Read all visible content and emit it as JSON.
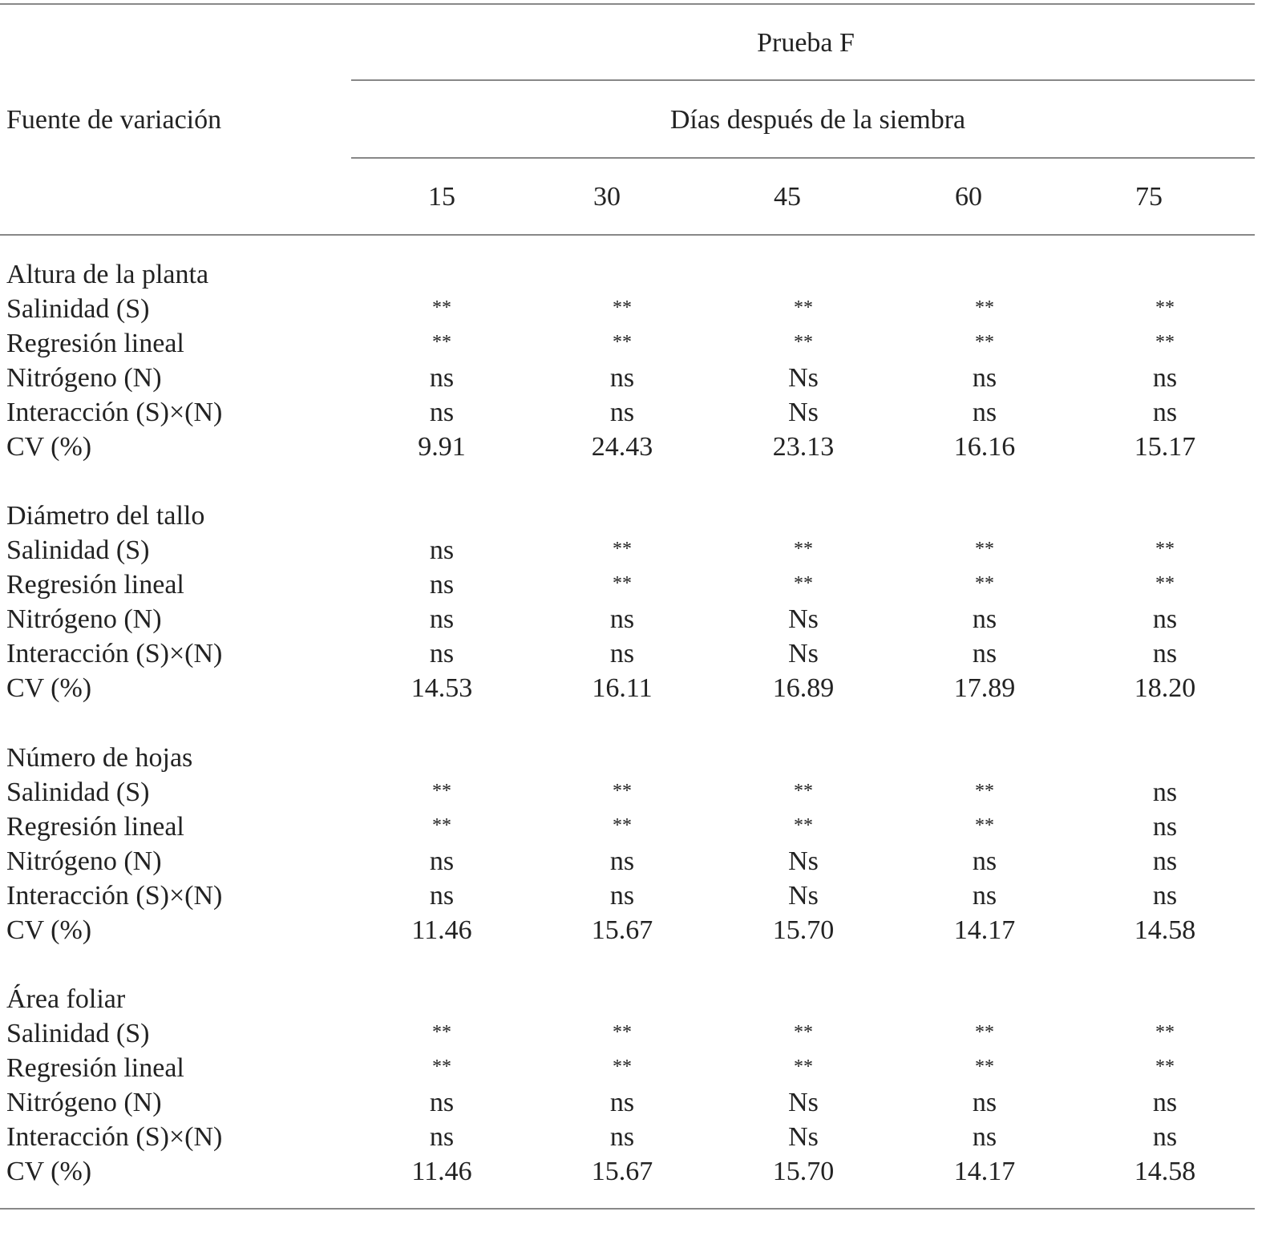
{
  "header": {
    "stub": "Fuente de variación",
    "spanner": "Prueba F",
    "subspanner": "Días después de la siembra",
    "columns": [
      "15",
      "30",
      "45",
      "60",
      "75"
    ]
  },
  "groups": [
    {
      "title": "Altura de la planta",
      "rows": [
        {
          "label": "Salinidad (S)",
          "values": [
            "**",
            "**",
            "**",
            "**",
            "**"
          ]
        },
        {
          "label": "Regresión lineal",
          "values": [
            "**",
            "**",
            "**",
            "**",
            "**"
          ]
        },
        {
          "label": "Nitrógeno (N)",
          "values": [
            "ns",
            "ns",
            "Ns",
            "ns",
            "ns"
          ]
        },
        {
          "label": "Interacción (S)×(N)",
          "values": [
            "ns",
            "ns",
            "Ns",
            "ns",
            "ns"
          ]
        },
        {
          "label": "CV (%)",
          "values": [
            "9.91",
            "24.43",
            "23.13",
            "16.16",
            "15.17"
          ]
        }
      ]
    },
    {
      "title": "Diámetro del tallo",
      "rows": [
        {
          "label": "Salinidad (S)",
          "values": [
            "ns",
            "**",
            "**",
            "**",
            "**"
          ]
        },
        {
          "label": "Regresión lineal",
          "values": [
            "ns",
            "**",
            "**",
            "**",
            "**"
          ]
        },
        {
          "label": "Nitrógeno (N)",
          "values": [
            "ns",
            "ns",
            "Ns",
            "ns",
            "ns"
          ]
        },
        {
          "label": "Interacción (S)×(N)",
          "values": [
            "ns",
            "ns",
            "Ns",
            "ns",
            "ns"
          ]
        },
        {
          "label": "CV (%)",
          "values": [
            "14.53",
            "16.11",
            "16.89",
            "17.89",
            "18.20"
          ]
        }
      ]
    },
    {
      "title": "Número de hojas",
      "rows": [
        {
          "label": "Salinidad (S)",
          "values": [
            "**",
            "**",
            "**",
            "**",
            "ns"
          ]
        },
        {
          "label": "Regresión lineal",
          "values": [
            "**",
            "**",
            "**",
            "**",
            "ns"
          ]
        },
        {
          "label": "Nitrógeno (N)",
          "values": [
            "ns",
            "ns",
            "Ns",
            "ns",
            "ns"
          ]
        },
        {
          "label": "Interacción (S)×(N)",
          "values": [
            "ns",
            "ns",
            "Ns",
            "ns",
            "ns"
          ]
        },
        {
          "label": "CV (%)",
          "values": [
            "11.46",
            "15.67",
            "15.70",
            "14.17",
            "14.58"
          ]
        }
      ]
    },
    {
      "title": "Área foliar",
      "rows": [
        {
          "label": "Salinidad (S)",
          "values": [
            "**",
            "**",
            "**",
            "**",
            "**"
          ]
        },
        {
          "label": "Regresión lineal",
          "values": [
            "**",
            "**",
            "**",
            "**",
            "**"
          ]
        },
        {
          "label": "Nitrógeno (N)",
          "values": [
            "ns",
            "ns",
            "Ns",
            "ns",
            "ns"
          ]
        },
        {
          "label": "Interacción (S)×(N)",
          "values": [
            "ns",
            "ns",
            "Ns",
            "ns",
            "ns"
          ]
        },
        {
          "label": "CV (%)",
          "values": [
            "11.46",
            "15.67",
            "15.70",
            "14.17",
            "14.58"
          ]
        }
      ]
    }
  ]
}
